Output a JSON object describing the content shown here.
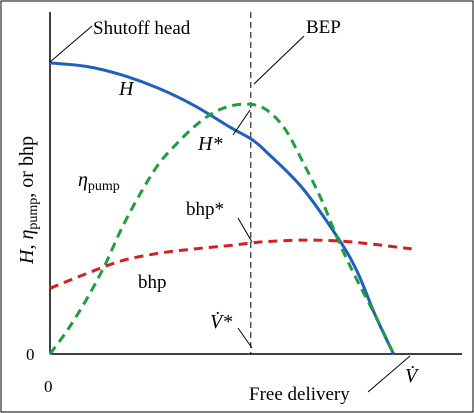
{
  "chart_data": {
    "type": "line",
    "title": "",
    "xlabel": "V̇",
    "ylabel": "H, ηpump, or bhp",
    "ylabel_parts": {
      "H": "H",
      "comma1": ", ",
      "eta": "η",
      "eta_sub": "pump",
      "rest": ", or bhp"
    },
    "xlim": [
      0,
      1
    ],
    "ylim": [
      0,
      1
    ],
    "x_ticks": [
      "0"
    ],
    "y_ticks": [
      "0"
    ],
    "grid": false,
    "bep_x": 0.555,
    "series": [
      {
        "name": "H",
        "color": "#1f5fbf",
        "dash": "solid",
        "points": [
          [
            0,
            0.997
          ],
          [
            0.1,
            0.985
          ],
          [
            0.2,
            0.955
          ],
          [
            0.3,
            0.91
          ],
          [
            0.4,
            0.85
          ],
          [
            0.5,
            0.775
          ],
          [
            0.555,
            0.737
          ],
          [
            0.6,
            0.69
          ],
          [
            0.7,
            0.565
          ],
          [
            0.8,
            0.39
          ],
          [
            0.85,
            0.28
          ],
          [
            0.9,
            0.13
          ],
          [
            0.95,
            0.0
          ]
        ]
      },
      {
        "name": "ηpump",
        "color": "#1e9e3e",
        "dash": "dashed",
        "points": [
          [
            0,
            0.0
          ],
          [
            0.05,
            0.085
          ],
          [
            0.1,
            0.185
          ],
          [
            0.15,
            0.3
          ],
          [
            0.2,
            0.435
          ],
          [
            0.25,
            0.55
          ],
          [
            0.3,
            0.65
          ],
          [
            0.35,
            0.72
          ],
          [
            0.4,
            0.78
          ],
          [
            0.45,
            0.825
          ],
          [
            0.5,
            0.85
          ],
          [
            0.555,
            0.855
          ],
          [
            0.6,
            0.835
          ],
          [
            0.65,
            0.77
          ],
          [
            0.7,
            0.655
          ],
          [
            0.75,
            0.53
          ],
          [
            0.8,
            0.38
          ],
          [
            0.85,
            0.25
          ],
          [
            0.9,
            0.13
          ],
          [
            0.95,
            0.0
          ]
        ]
      },
      {
        "name": "bhp",
        "color": "#d42020",
        "dash": "dashed",
        "points": [
          [
            0,
            0.225
          ],
          [
            0.1,
            0.275
          ],
          [
            0.2,
            0.32
          ],
          [
            0.3,
            0.345
          ],
          [
            0.4,
            0.36
          ],
          [
            0.5,
            0.372
          ],
          [
            0.555,
            0.38
          ],
          [
            0.6,
            0.385
          ],
          [
            0.7,
            0.39
          ],
          [
            0.8,
            0.387
          ],
          [
            0.9,
            0.375
          ],
          [
            1.0,
            0.36
          ]
        ]
      }
    ],
    "annotations": {
      "shutoff": "Shutoff head",
      "bep": "BEP",
      "h_label": "H",
      "h_star": "H*",
      "eta_label": "η",
      "eta_sub": "pump",
      "bhp_star": "bhp*",
      "bhp_label": "bhp",
      "v_star": "V̇*",
      "free_delivery": "Free delivery",
      "v_dot": "V̇"
    }
  }
}
